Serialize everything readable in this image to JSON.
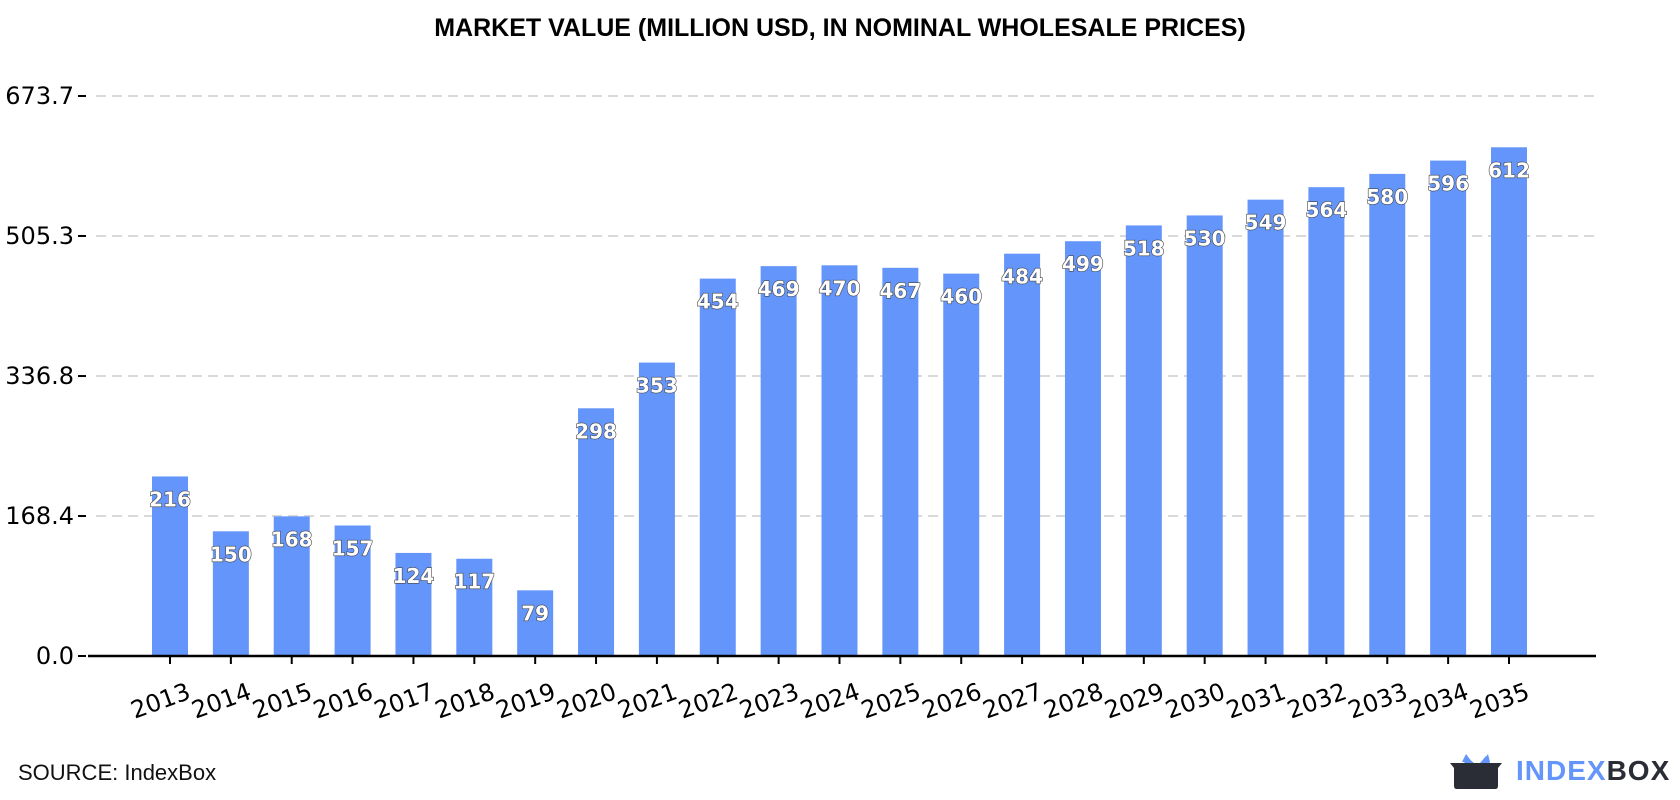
{
  "chart_data": {
    "type": "bar",
    "title": "MARKET VALUE (MILLION USD, IN NOMINAL WHOLESALE PRICES)",
    "categories": [
      "2013",
      "2014",
      "2015",
      "2016",
      "2017",
      "2018",
      "2019",
      "2020",
      "2021",
      "2022",
      "2023",
      "2024",
      "2025",
      "2026",
      "2027",
      "2028",
      "2029",
      "2030",
      "2031",
      "2032",
      "2033",
      "2034",
      "2035"
    ],
    "values": [
      216,
      150,
      168,
      157,
      124,
      117,
      79,
      298,
      353,
      454,
      469,
      470,
      467,
      460,
      484,
      499,
      518,
      530,
      549,
      564,
      580,
      596,
      612
    ],
    "yticks": [
      "0.0",
      "168.4",
      "336.8",
      "505.3",
      "673.7"
    ],
    "ytick_values": [
      0,
      168.4,
      336.8,
      505.3,
      673.7
    ],
    "ylim": [
      0,
      673.7
    ],
    "grid": "horizontal dashed",
    "bar_color": "#6495fb",
    "xlabel": "",
    "ylabel": ""
  },
  "footer": {
    "source": "SOURCE: IndexBox"
  },
  "logo": {
    "part1": "INDEX",
    "part2": "BOX",
    "colors": [
      "#6495fb",
      "#2b2d36"
    ]
  }
}
